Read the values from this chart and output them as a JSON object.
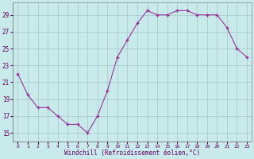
{
  "x": [
    0,
    1,
    2,
    3,
    4,
    5,
    6,
    7,
    8,
    9,
    10,
    11,
    12,
    13,
    14,
    15,
    16,
    17,
    18,
    19,
    20,
    21,
    22,
    23
  ],
  "y": [
    22,
    19.5,
    18,
    18,
    17,
    16,
    16,
    15,
    17,
    20,
    24,
    26,
    28,
    29.5,
    29,
    29,
    29.5,
    29.5,
    29,
    29,
    29,
    27.5,
    25,
    24
  ],
  "line_color": "#993399",
  "marker_color": "#993399",
  "bg_color": "#c8eaea",
  "grid_color": "#aacccc",
  "tick_color": "#660066",
  "label_color": "#660066",
  "xlabel": "Windchill (Refroidissement éolien,°C)",
  "ylim": [
    14,
    30.5
  ],
  "yticks": [
    15,
    17,
    19,
    21,
    23,
    25,
    27,
    29
  ],
  "xticks": [
    0,
    1,
    2,
    3,
    4,
    5,
    6,
    7,
    8,
    9,
    10,
    11,
    12,
    13,
    14,
    15,
    16,
    17,
    18,
    19,
    20,
    21,
    22,
    23
  ]
}
